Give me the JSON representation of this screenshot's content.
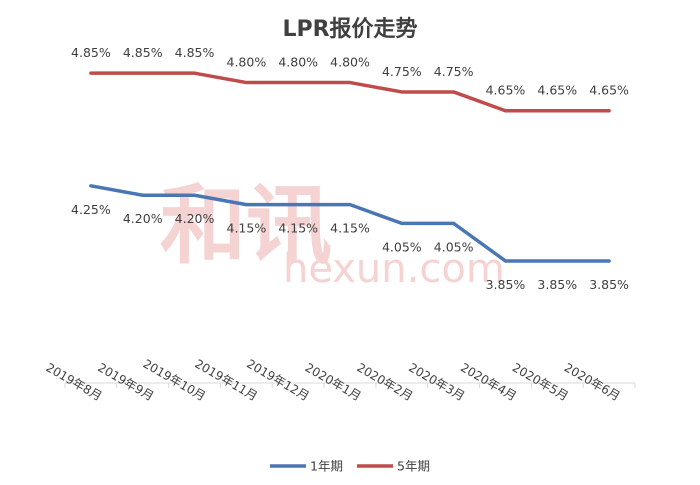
{
  "chart_data": {
    "type": "line",
    "title": "LPR报价走势",
    "categories": [
      "2019年8月",
      "2019年9月",
      "2019年10月",
      "2019年11月",
      "2019年12月",
      "2020年1月",
      "2020年2月",
      "2020年3月",
      "2020年4月",
      "2020年5月",
      "2020年6月"
    ],
    "series": [
      {
        "name": "1年期",
        "color": "#4a77b4",
        "values": [
          4.25,
          4.2,
          4.2,
          4.15,
          4.15,
          4.15,
          4.05,
          4.05,
          3.85,
          3.85,
          3.85
        ],
        "labels": [
          "4.25%",
          "4.20%",
          "4.20%",
          "4.15%",
          "4.15%",
          "4.15%",
          "4.05%",
          "4.05%",
          "3.85%",
          "3.85%",
          "3.85%"
        ]
      },
      {
        "name": "5年期",
        "color": "#bf4b4a",
        "values": [
          4.85,
          4.85,
          4.85,
          4.8,
          4.8,
          4.8,
          4.75,
          4.75,
          4.65,
          4.65,
          4.65
        ],
        "labels": [
          "4.85%",
          "4.85%",
          "4.85%",
          "4.80%",
          "4.80%",
          "4.80%",
          "4.75%",
          "4.75%",
          "4.65%",
          "4.65%",
          "4.65%"
        ]
      }
    ],
    "ylim": [
      3.2,
      5.0
    ],
    "grid": false,
    "legend_position": "bottom",
    "watermark": {
      "logo_text": "和讯",
      "site": "hexun.com"
    }
  }
}
